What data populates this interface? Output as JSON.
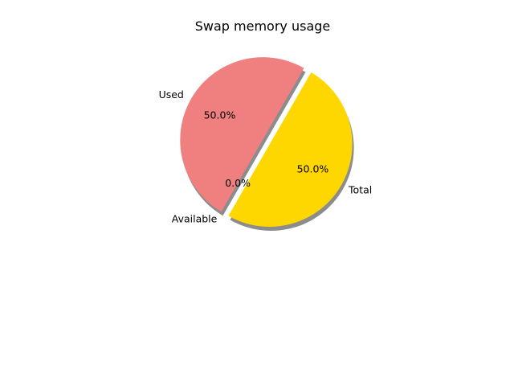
{
  "chart_data": {
    "type": "pie",
    "title": "Swap memory usage",
    "categories": [
      "Used",
      "Available",
      "Total"
    ],
    "values": [
      50.0,
      0.0,
      50.0
    ],
    "percent_labels": [
      "50.0%",
      "0.0%",
      "50.0%"
    ],
    "colors": [
      "#f08080",
      "#87ceeb",
      "#ffd700"
    ],
    "exploded": [
      false,
      false,
      true
    ],
    "shadow": true,
    "start_angle_deg": 60,
    "legend": "none"
  }
}
